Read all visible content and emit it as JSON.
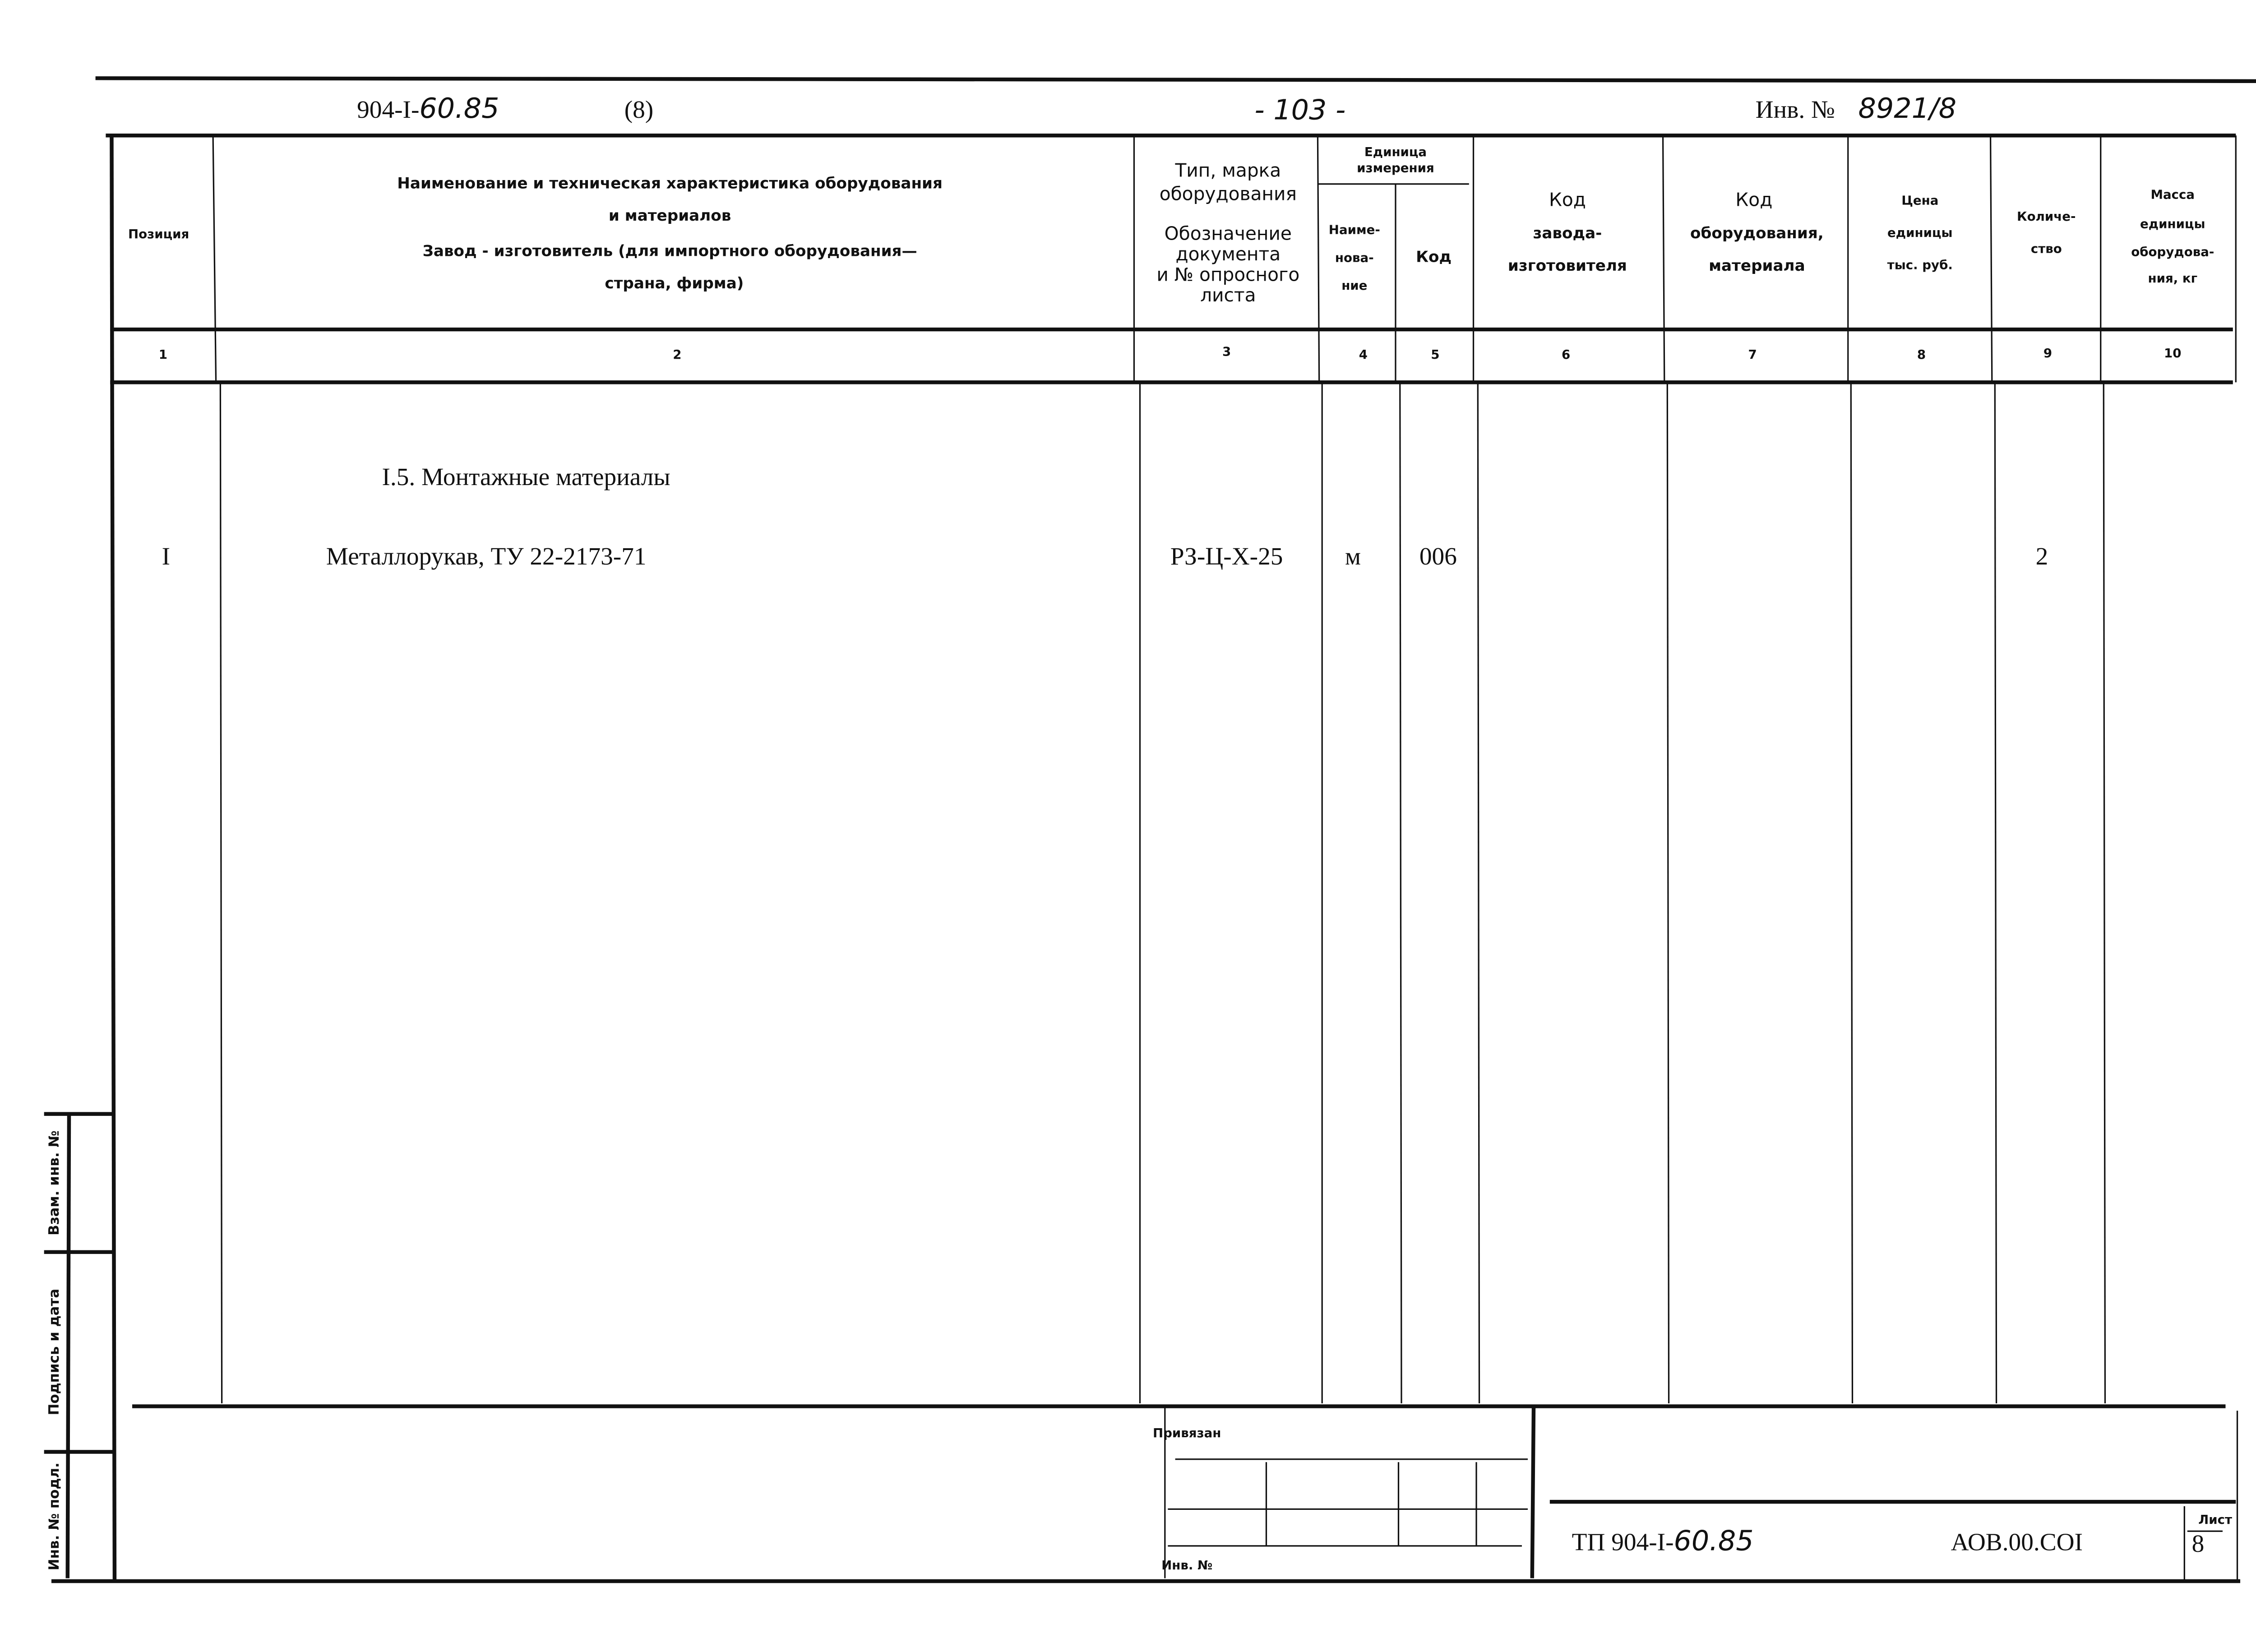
{
  "page_header": {
    "doc_number_typed": "904-I-",
    "doc_number_hand": "60.85",
    "sheet_paren": "(8)",
    "page_number": "- 103 -",
    "inv_label": "Инв. №",
    "inv_number": "8921/8"
  },
  "table": {
    "headers": {
      "position": "Позиция",
      "name_line1": "Наименование и техническая характеристика оборудования",
      "name_line2": "и материалов",
      "name_line3": "Завод - изготовитель (для импортного оборудования—",
      "name_line4": "страна, фирма)",
      "type_line1": "Тип, марка",
      "type_line2": "оборудования",
      "type_line3": "Обозначение",
      "type_line4": "документа",
      "type_line5": "и № опросного",
      "type_line6": "листа",
      "unit_line1": "Единица",
      "unit_line2": "измерения",
      "unit_name_line1": "Наиме-",
      "unit_name_line2": "нова-",
      "unit_name_line3": "ние",
      "unit_code": "Код",
      "mfr_code_line1": "Код",
      "mfr_code_line2": "завода-",
      "mfr_code_line3": "изготовителя",
      "equip_code_line1": "Код",
      "equip_code_line2": "оборудования,",
      "equip_code_line3": "материала",
      "price_line1": "Цена",
      "price_line2": "единицы",
      "price_line3": "тыс. руб.",
      "qty_line1": "Количе-",
      "qty_line2": "ство",
      "mass_line1": "Масса",
      "mass_line2": "единицы",
      "mass_line3": "оборудова-",
      "mass_line4": "ния, кг"
    },
    "column_numbers": [
      "1",
      "2",
      "3",
      "4",
      "5",
      "6",
      "7",
      "8",
      "9",
      "10"
    ],
    "section_title": "I.5. Монтажные материалы",
    "rows": [
      {
        "position": "I",
        "name": "Металлорукав, ТУ 22-2173-71",
        "type": "РЗ-Ц-Х-25",
        "unit_name": "м",
        "unit_code": "006",
        "mfr_code": "",
        "equip_code": "",
        "price": "",
        "quantity": "2",
        "mass": ""
      }
    ]
  },
  "side_stamp": {
    "replaced_inv": "Взам. инв. №",
    "signature_date": "Подпись и дата",
    "original_inv": "Инв. № подл."
  },
  "title_block": {
    "bound_label": "Привязан",
    "inv_label": "Инв. №",
    "designation_typed": "ТП 904-I-",
    "designation_hand": "60.85",
    "code": "АОВ.00.СОI",
    "sheet_label": "Лист",
    "sheet_number": "8"
  }
}
